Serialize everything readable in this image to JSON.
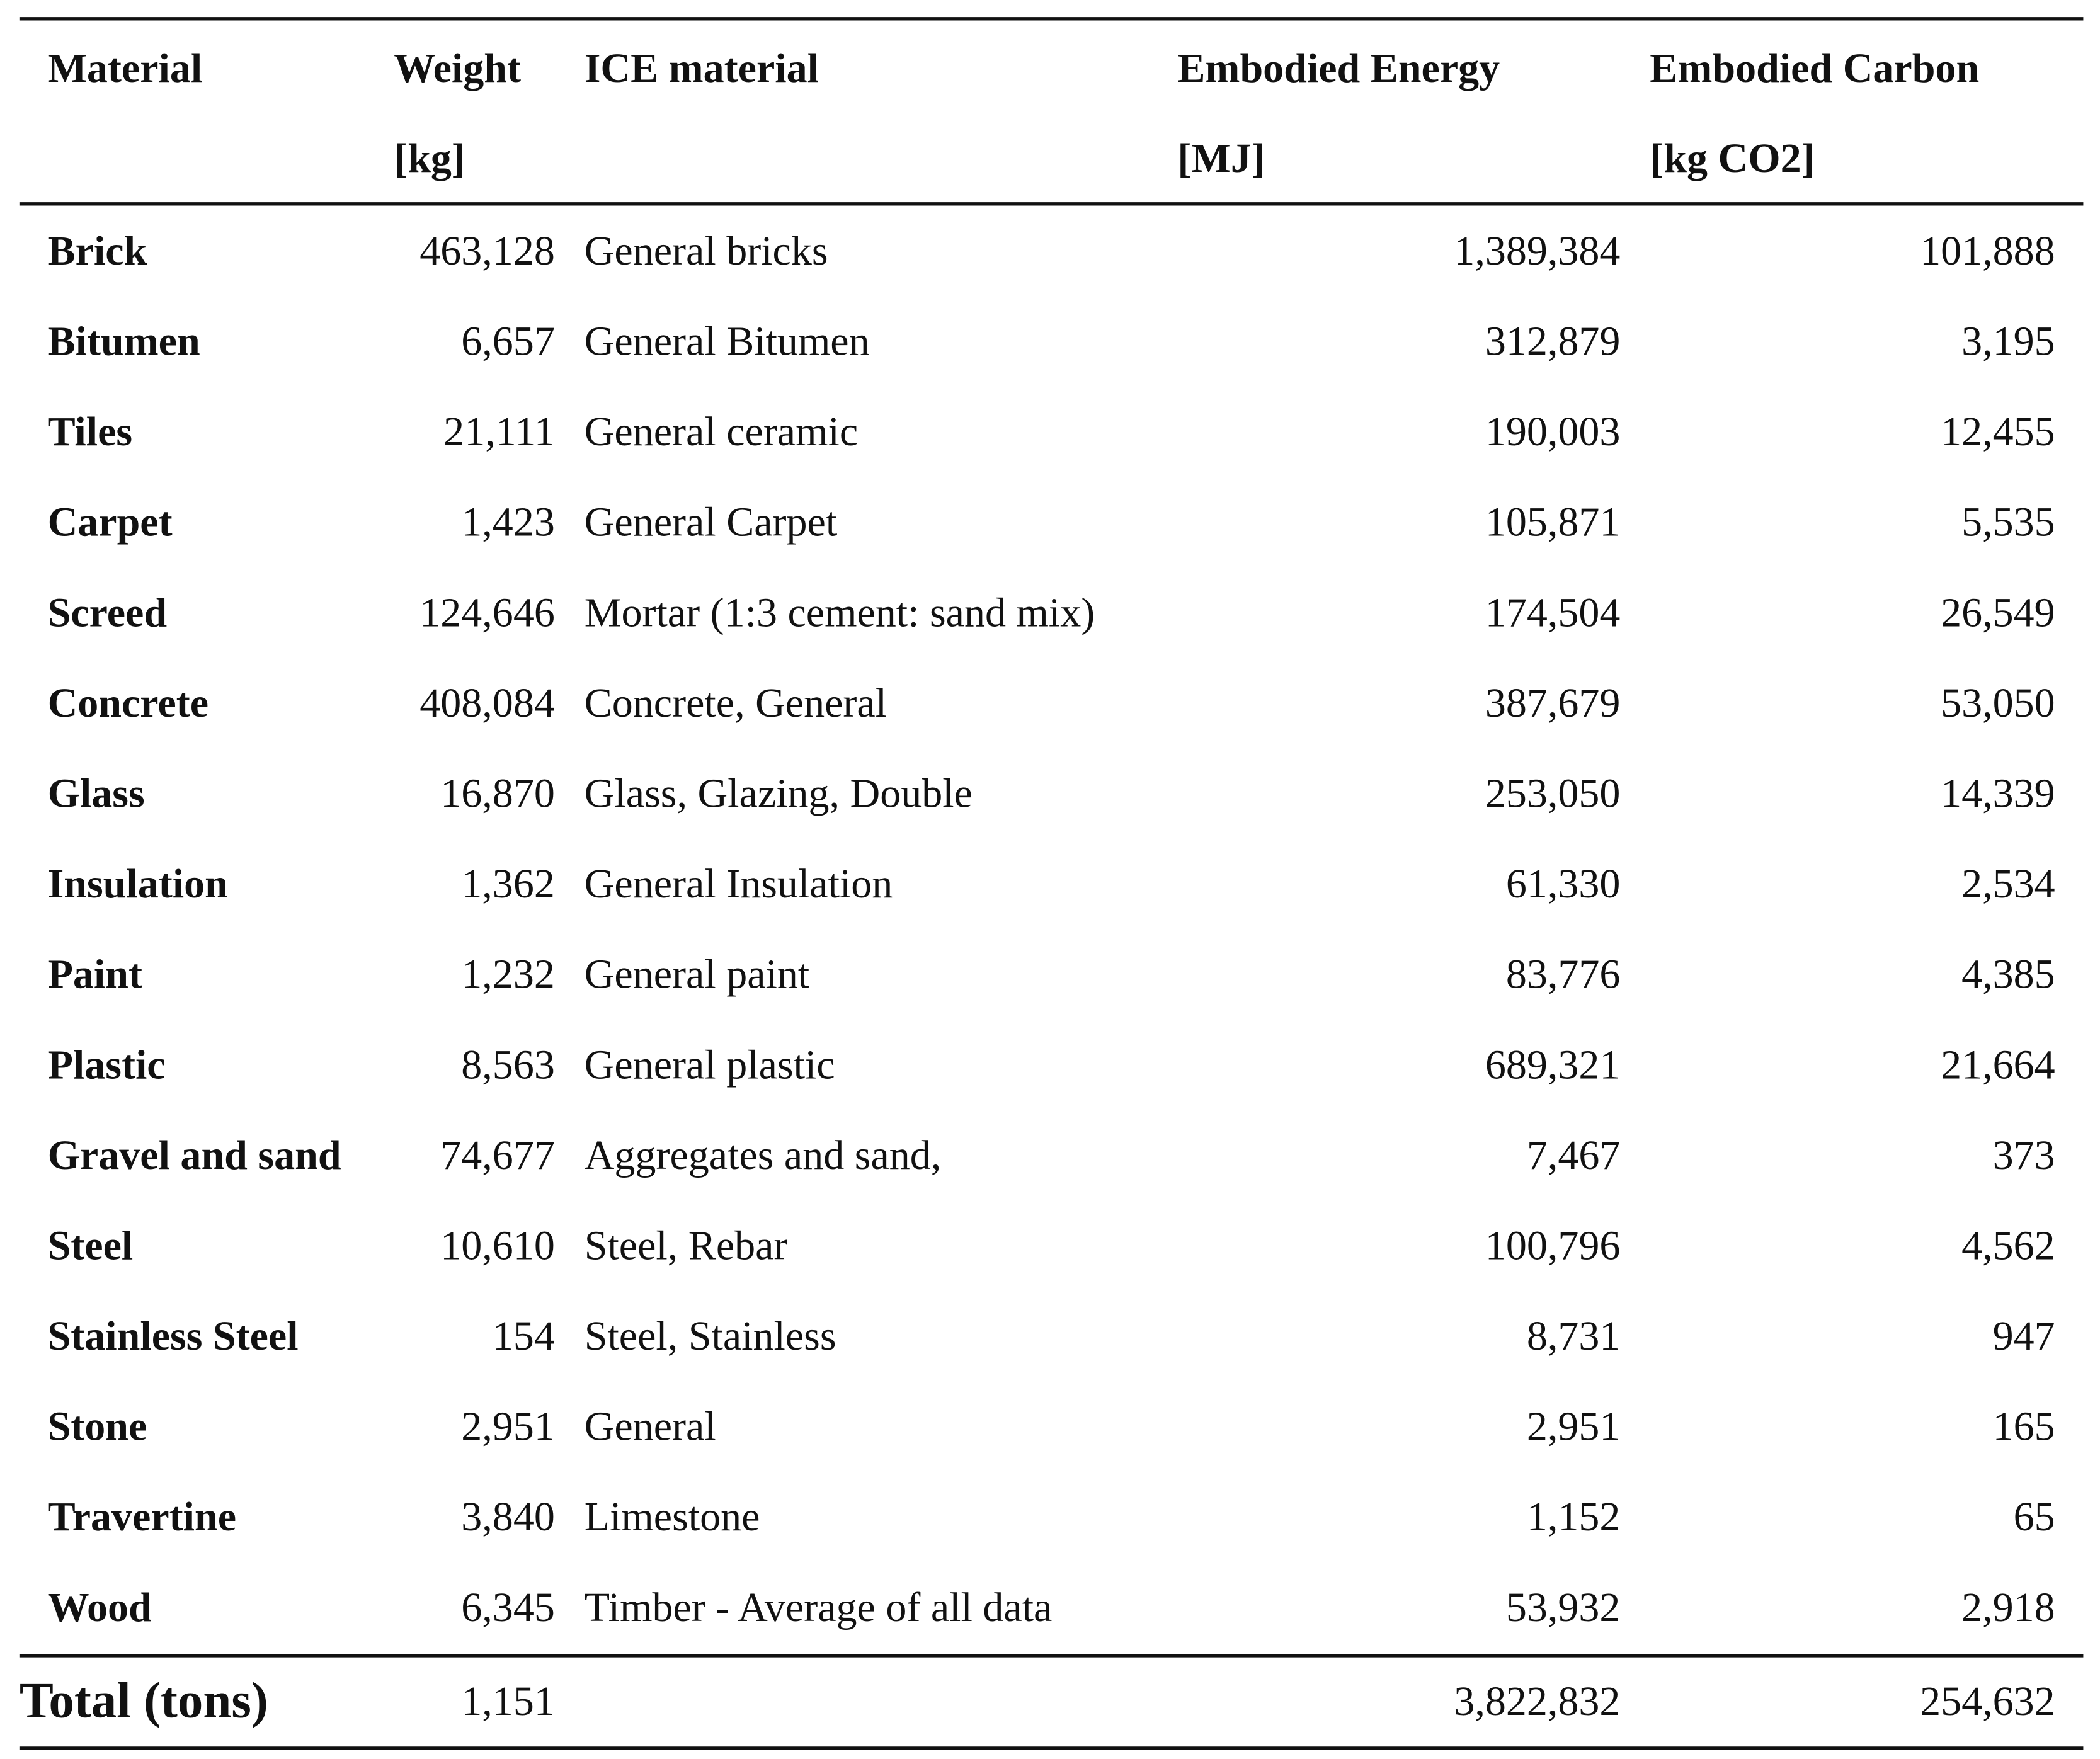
{
  "table": {
    "header": [
      [
        "Material"
      ],
      [
        "Weight",
        "[kg]"
      ],
      [
        "ICE material"
      ],
      [
        "Embodied Energy",
        "[MJ]"
      ],
      [
        "Embodied Carbon",
        "[kg CO2]"
      ]
    ],
    "rows": [
      [
        "Brick",
        "463,128",
        "General bricks",
        "1,389,384",
        "101,888"
      ],
      [
        "Bitumen",
        "6,657",
        "General Bitumen",
        "312,879",
        "3,195"
      ],
      [
        "Tiles",
        "21,111",
        "General ceramic",
        "190,003",
        "12,455"
      ],
      [
        "Carpet",
        "1,423",
        "General Carpet",
        "105,871",
        "5,535"
      ],
      [
        "Screed",
        "124,646",
        "Mortar (1:3 cement: sand mix)",
        "174,504",
        "26,549"
      ],
      [
        "Concrete",
        "408,084",
        "Concrete, General",
        "387,679",
        "53,050"
      ],
      [
        "Glass",
        "16,870",
        "Glass, Glazing, Double",
        "253,050",
        "14,339"
      ],
      [
        "Insulation",
        "1,362",
        "General Insulation",
        "61,330",
        "2,534"
      ],
      [
        "Paint",
        "1,232",
        "General paint",
        "83,776",
        "4,385"
      ],
      [
        "Plastic",
        "8,563",
        "General plastic",
        "689,321",
        "21,664"
      ],
      [
        "Gravel and sand",
        "74,677",
        "Aggregates and sand,",
        "7,467",
        "373"
      ],
      [
        "Steel",
        "10,610",
        "Steel, Rebar",
        "100,796",
        "4,562"
      ],
      [
        "Stainless Steel",
        "154",
        "Steel, Stainless",
        "8,731",
        "947"
      ],
      [
        "Stone",
        "2,951",
        "General",
        "2,951",
        "165"
      ],
      [
        "Travertine",
        "3,840",
        "Limestone",
        "1,152",
        "65"
      ],
      [
        "Wood",
        "6,345",
        "Timber - Average of all data",
        "53,932",
        "2,918"
      ]
    ],
    "total": {
      "label": "Total (tons)",
      "weight": "1,151",
      "energy": "3,822,832",
      "carbon": "254,632"
    }
  }
}
